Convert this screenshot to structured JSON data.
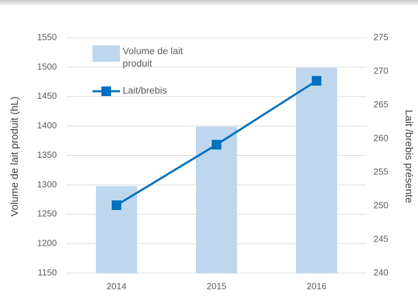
{
  "chart_data": {
    "type": "bar",
    "ylabel": "Volume de lait produit (hL)",
    "y2label": "Lait /brebis présente",
    "categories": [
      "2014",
      "2015",
      "2016"
    ],
    "series": [
      {
        "name": "Volume de lait produit",
        "type": "bar",
        "color": "#bdd7ee",
        "values": [
          1298,
          1399,
          1499
        ]
      },
      {
        "name": "Lait/brebis",
        "type": "line",
        "axis": "y2",
        "color": "#0070c0",
        "values": [
          250.1,
          259.1,
          268.6
        ]
      }
    ],
    "ylim": [
      1150,
      1550
    ],
    "yticks": [
      1150,
      1200,
      1250,
      1300,
      1350,
      1400,
      1450,
      1500,
      1550
    ],
    "y2lim": [
      240,
      275
    ],
    "y2ticks": [
      240,
      245,
      250,
      255,
      260,
      265,
      270,
      275
    ],
    "grid": true,
    "legend": "top-left"
  }
}
